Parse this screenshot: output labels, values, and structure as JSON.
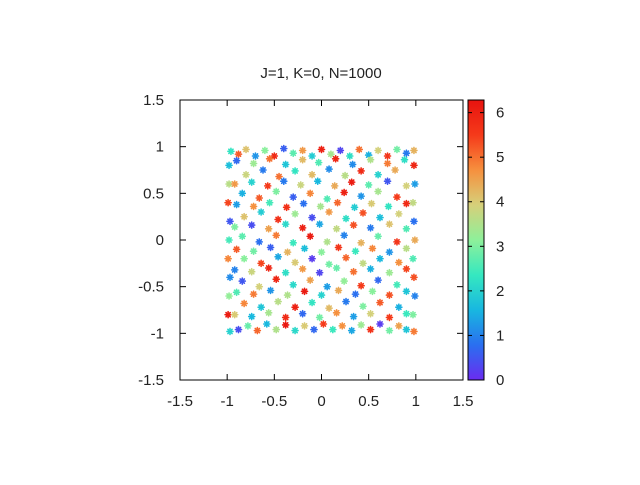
{
  "chart_data": {
    "type": "scatter",
    "title": "J=1, K=0, N=1000",
    "xlim": [
      -1.5,
      1.5
    ],
    "ylim": [
      -1.5,
      1.5
    ],
    "xticks": [
      "-1.5",
      "-1",
      "-0.5",
      "0",
      "0.5",
      "1",
      "1.5"
    ],
    "yticks": [
      "-1.5",
      "-1",
      "-0.5",
      "0",
      "0.5",
      "1",
      "1.5"
    ],
    "xlabel": "",
    "ylabel": "",
    "grid": false,
    "legend": "none",
    "colorbar": {
      "range": [
        0,
        6.2832
      ],
      "ticks": [
        "0",
        "1",
        "2",
        "3",
        "4",
        "5",
        "6"
      ],
      "colormap": "rainbow",
      "colors": [
        "#6a2cf0",
        "#2a6ff0",
        "#18b7e0",
        "#35e8c0",
        "#8ef09a",
        "#d6d07a",
        "#f6903e",
        "#f53a1a",
        "#e8130f"
      ]
    },
    "marker_size": 3,
    "points": [
      [
        -0.96,
        0.95,
        2.3
      ],
      [
        -0.88,
        0.92,
        5.2
      ],
      [
        -0.8,
        0.97,
        4.1
      ],
      [
        -0.7,
        0.9,
        1.2
      ],
      [
        -0.6,
        0.96,
        3.1
      ],
      [
        -0.5,
        0.9,
        5.8
      ],
      [
        -0.4,
        0.98,
        0.6
      ],
      [
        -0.3,
        0.93,
        2.7
      ],
      [
        -0.2,
        0.96,
        4.6
      ],
      [
        -0.1,
        0.9,
        1.9
      ],
      [
        0.0,
        0.97,
        6.0
      ],
      [
        0.1,
        0.92,
        3.4
      ],
      [
        0.2,
        0.96,
        0.3
      ],
      [
        0.3,
        0.9,
        2.2
      ],
      [
        0.4,
        0.97,
        5.0
      ],
      [
        0.5,
        0.91,
        1.5
      ],
      [
        0.6,
        0.96,
        3.9
      ],
      [
        0.7,
        0.9,
        5.6
      ],
      [
        0.8,
        0.97,
        2.9
      ],
      [
        0.9,
        0.93,
        0.9
      ],
      [
        0.98,
        0.96,
        4.3
      ],
      [
        -0.98,
        0.8,
        1.7
      ],
      [
        -0.98,
        0.6,
        3.6
      ],
      [
        -0.99,
        0.4,
        5.4
      ],
      [
        -0.97,
        0.2,
        0.5
      ],
      [
        -0.98,
        0.0,
        2.5
      ],
      [
        -0.99,
        -0.2,
        4.8
      ],
      [
        -0.97,
        -0.4,
        1.1
      ],
      [
        -0.98,
        -0.6,
        3.2
      ],
      [
        -0.99,
        -0.8,
        6.1
      ],
      [
        -0.97,
        -0.98,
        2.0
      ],
      [
        0.98,
        0.8,
        5.9
      ],
      [
        0.99,
        0.6,
        1.3
      ],
      [
        0.97,
        0.4,
        3.7
      ],
      [
        0.98,
        0.2,
        0.8
      ],
      [
        0.99,
        0.0,
        4.4
      ],
      [
        0.97,
        -0.2,
        2.6
      ],
      [
        0.98,
        -0.4,
        5.3
      ],
      [
        0.99,
        -0.6,
        1.0
      ],
      [
        0.97,
        -0.8,
        3.0
      ],
      [
        0.98,
        -0.98,
        4.9
      ],
      [
        -0.88,
        -0.96,
        0.4
      ],
      [
        -0.78,
        -0.92,
        2.8
      ],
      [
        -0.68,
        -0.97,
        5.1
      ],
      [
        -0.58,
        -0.9,
        1.6
      ],
      [
        -0.48,
        -0.96,
        3.5
      ],
      [
        -0.38,
        -0.91,
        6.2
      ],
      [
        -0.28,
        -0.97,
        2.1
      ],
      [
        -0.18,
        -0.92,
        4.0
      ],
      [
        -0.08,
        -0.96,
        0.7
      ],
      [
        0.02,
        -0.9,
        5.5
      ],
      [
        0.12,
        -0.96,
        2.4
      ],
      [
        0.22,
        -0.92,
        4.7
      ],
      [
        0.32,
        -0.97,
        1.4
      ],
      [
        0.42,
        -0.91,
        3.3
      ],
      [
        0.52,
        -0.96,
        5.7
      ],
      [
        0.62,
        -0.9,
        0.2
      ],
      [
        0.72,
        -0.97,
        2.9
      ],
      [
        0.82,
        -0.92,
        4.5
      ],
      [
        0.9,
        -0.96,
        1.8
      ],
      [
        -0.8,
        0.7,
        3.8
      ],
      [
        -0.62,
        0.75,
        0.9
      ],
      [
        -0.45,
        0.68,
        5.0
      ],
      [
        -0.28,
        0.74,
        2.3
      ],
      [
        -0.1,
        0.7,
        4.2
      ],
      [
        0.08,
        0.76,
        1.1
      ],
      [
        0.25,
        0.69,
        3.6
      ],
      [
        0.42,
        0.74,
        5.8
      ],
      [
        0.6,
        0.7,
        2.0
      ],
      [
        0.78,
        0.75,
        4.4
      ],
      [
        -0.84,
        0.5,
        1.5
      ],
      [
        -0.66,
        0.45,
        5.2
      ],
      [
        -0.48,
        0.52,
        3.0
      ],
      [
        -0.3,
        0.46,
        0.6
      ],
      [
        -0.12,
        0.5,
        4.8
      ],
      [
        0.06,
        0.44,
        2.6
      ],
      [
        0.24,
        0.51,
        6.0
      ],
      [
        0.42,
        0.47,
        1.2
      ],
      [
        0.6,
        0.52,
        3.4
      ],
      [
        0.8,
        0.46,
        5.5
      ],
      [
        -0.82,
        0.25,
        4.1
      ],
      [
        -0.64,
        0.3,
        1.9
      ],
      [
        -0.46,
        0.22,
        5.7
      ],
      [
        -0.28,
        0.28,
        3.3
      ],
      [
        -0.1,
        0.24,
        0.4
      ],
      [
        0.08,
        0.3,
        4.6
      ],
      [
        0.26,
        0.23,
        2.2
      ],
      [
        0.44,
        0.29,
        5.3
      ],
      [
        0.62,
        0.24,
        1.7
      ],
      [
        0.82,
        0.28,
        3.9
      ],
      [
        -0.84,
        0.04,
        2.7
      ],
      [
        -0.66,
        -0.02,
        0.8
      ],
      [
        -0.48,
        0.05,
        4.9
      ],
      [
        -0.3,
        -0.03,
        2.4
      ],
      [
        -0.12,
        0.04,
        6.1
      ],
      [
        0.06,
        -0.02,
        3.5
      ],
      [
        0.24,
        0.05,
        1.0
      ],
      [
        0.42,
        -0.03,
        4.3
      ],
      [
        0.6,
        0.04,
        2.8
      ],
      [
        0.8,
        -0.02,
        5.6
      ],
      [
        -0.82,
        -0.2,
        3.1
      ],
      [
        -0.64,
        -0.25,
        5.4
      ],
      [
        -0.46,
        -0.18,
        1.4
      ],
      [
        -0.28,
        -0.24,
        4.0
      ],
      [
        -0.1,
        -0.2,
        0.2
      ],
      [
        0.08,
        -0.26,
        2.9
      ],
      [
        0.26,
        -0.19,
        5.1
      ],
      [
        0.44,
        -0.25,
        3.7
      ],
      [
        0.62,
        -0.2,
        1.6
      ],
      [
        0.82,
        -0.24,
        4.7
      ],
      [
        -0.84,
        -0.44,
        0.5
      ],
      [
        -0.66,
        -0.5,
        3.9
      ],
      [
        -0.48,
        -0.42,
        5.9
      ],
      [
        -0.3,
        -0.48,
        2.1
      ],
      [
        -0.12,
        -0.43,
        4.5
      ],
      [
        0.06,
        -0.5,
        1.3
      ],
      [
        0.24,
        -0.44,
        3.2
      ],
      [
        0.42,
        -0.49,
        5.5
      ],
      [
        0.6,
        -0.43,
        0.7
      ],
      [
        0.8,
        -0.48,
        2.5
      ],
      [
        -0.82,
        -0.68,
        4.8
      ],
      [
        -0.64,
        -0.72,
        1.8
      ],
      [
        -0.46,
        -0.66,
        3.6
      ],
      [
        -0.28,
        -0.72,
        6.0
      ],
      [
        -0.1,
        -0.67,
        2.3
      ],
      [
        0.08,
        -0.73,
        4.2
      ],
      [
        0.26,
        -0.66,
        0.9
      ],
      [
        0.44,
        -0.71,
        3.0
      ],
      [
        0.62,
        -0.67,
        5.2
      ],
      [
        0.82,
        -0.72,
        1.5
      ],
      [
        -0.9,
        0.85,
        0.7
      ],
      [
        -0.72,
        0.82,
        3.3
      ],
      [
        -0.55,
        0.87,
        5.0
      ],
      [
        -0.38,
        0.81,
        1.8
      ],
      [
        -0.2,
        0.86,
        4.2
      ],
      [
        -0.03,
        0.83,
        2.6
      ],
      [
        0.15,
        0.87,
        5.9
      ],
      [
        0.33,
        0.81,
        1.1
      ],
      [
        0.52,
        0.86,
        3.5
      ],
      [
        0.7,
        0.82,
        4.9
      ],
      [
        0.88,
        0.86,
        2.2
      ],
      [
        -0.92,
        0.6,
        4.6
      ],
      [
        -0.74,
        0.62,
        2.0
      ],
      [
        -0.57,
        0.58,
        5.5
      ],
      [
        -0.4,
        0.63,
        0.9
      ],
      [
        -0.22,
        0.59,
        3.8
      ],
      [
        -0.04,
        0.63,
        1.6
      ],
      [
        0.14,
        0.58,
        4.4
      ],
      [
        0.32,
        0.62,
        6.1
      ],
      [
        0.5,
        0.59,
        2.7
      ],
      [
        0.7,
        0.63,
        0.5
      ],
      [
        0.9,
        0.58,
        3.9
      ],
      [
        -0.9,
        0.38,
        1.3
      ],
      [
        -0.72,
        0.36,
        4.7
      ],
      [
        -0.55,
        0.4,
        2.5
      ],
      [
        -0.37,
        0.35,
        5.7
      ],
      [
        -0.19,
        0.39,
        0.8
      ],
      [
        -0.01,
        0.36,
        3.4
      ],
      [
        0.17,
        0.4,
        5.1
      ],
      [
        0.35,
        0.35,
        1.9
      ],
      [
        0.53,
        0.39,
        4.0
      ],
      [
        0.71,
        0.36,
        2.3
      ],
      [
        0.9,
        0.39,
        5.8
      ],
      [
        -0.92,
        0.14,
        3.0
      ],
      [
        -0.74,
        0.16,
        0.4
      ],
      [
        -0.56,
        0.12,
        4.5
      ],
      [
        -0.38,
        0.17,
        2.1
      ],
      [
        -0.2,
        0.13,
        6.0
      ],
      [
        -0.02,
        0.17,
        1.4
      ],
      [
        0.16,
        0.12,
        3.7
      ],
      [
        0.34,
        0.16,
        5.3
      ],
      [
        0.52,
        0.13,
        0.9
      ],
      [
        0.72,
        0.17,
        4.1
      ],
      [
        0.9,
        0.12,
        2.6
      ],
      [
        -0.9,
        -0.1,
        5.2
      ],
      [
        -0.72,
        -0.12,
        2.9
      ],
      [
        -0.54,
        -0.08,
        0.6
      ],
      [
        -0.36,
        -0.13,
        4.3
      ],
      [
        -0.18,
        -0.09,
        1.7
      ],
      [
        0.0,
        -0.13,
        3.1
      ],
      [
        0.18,
        -0.08,
        5.6
      ],
      [
        0.36,
        -0.12,
        2.4
      ],
      [
        0.54,
        -0.09,
        4.8
      ],
      [
        0.72,
        -0.13,
        1.2
      ],
      [
        0.9,
        -0.09,
        3.6
      ],
      [
        -0.92,
        -0.32,
        1.0
      ],
      [
        -0.74,
        -0.34,
        3.8
      ],
      [
        -0.56,
        -0.3,
        5.9
      ],
      [
        -0.38,
        -0.35,
        2.2
      ],
      [
        -0.2,
        -0.31,
        4.6
      ],
      [
        -0.02,
        -0.35,
        0.3
      ],
      [
        0.16,
        -0.3,
        2.8
      ],
      [
        0.34,
        -0.34,
        5.0
      ],
      [
        0.52,
        -0.31,
        1.5
      ],
      [
        0.72,
        -0.35,
        3.3
      ],
      [
        0.9,
        -0.31,
        5.4
      ],
      [
        -0.9,
        -0.56,
        2.6
      ],
      [
        -0.72,
        -0.58,
        4.9
      ],
      [
        -0.54,
        -0.54,
        1.2
      ],
      [
        -0.36,
        -0.59,
        3.5
      ],
      [
        -0.18,
        -0.55,
        6.1
      ],
      [
        0.0,
        -0.59,
        2.0
      ],
      [
        0.18,
        -0.54,
        4.4
      ],
      [
        0.36,
        -0.58,
        0.8
      ],
      [
        0.54,
        -0.55,
        3.1
      ],
      [
        0.72,
        -0.59,
        5.3
      ],
      [
        0.9,
        -0.55,
        1.8
      ],
      [
        -0.92,
        -0.8,
        4.0
      ],
      [
        -0.74,
        -0.82,
        1.6
      ],
      [
        -0.56,
        -0.78,
        3.4
      ],
      [
        -0.38,
        -0.83,
        5.8
      ],
      [
        -0.2,
        -0.79,
        0.7
      ],
      [
        -0.02,
        -0.83,
        2.9
      ],
      [
        0.16,
        -0.78,
        4.7
      ],
      [
        0.34,
        -0.82,
        1.3
      ],
      [
        0.52,
        -0.79,
        3.9
      ],
      [
        0.72,
        -0.83,
        5.5
      ],
      [
        0.9,
        -0.79,
        2.4
      ]
    ]
  }
}
